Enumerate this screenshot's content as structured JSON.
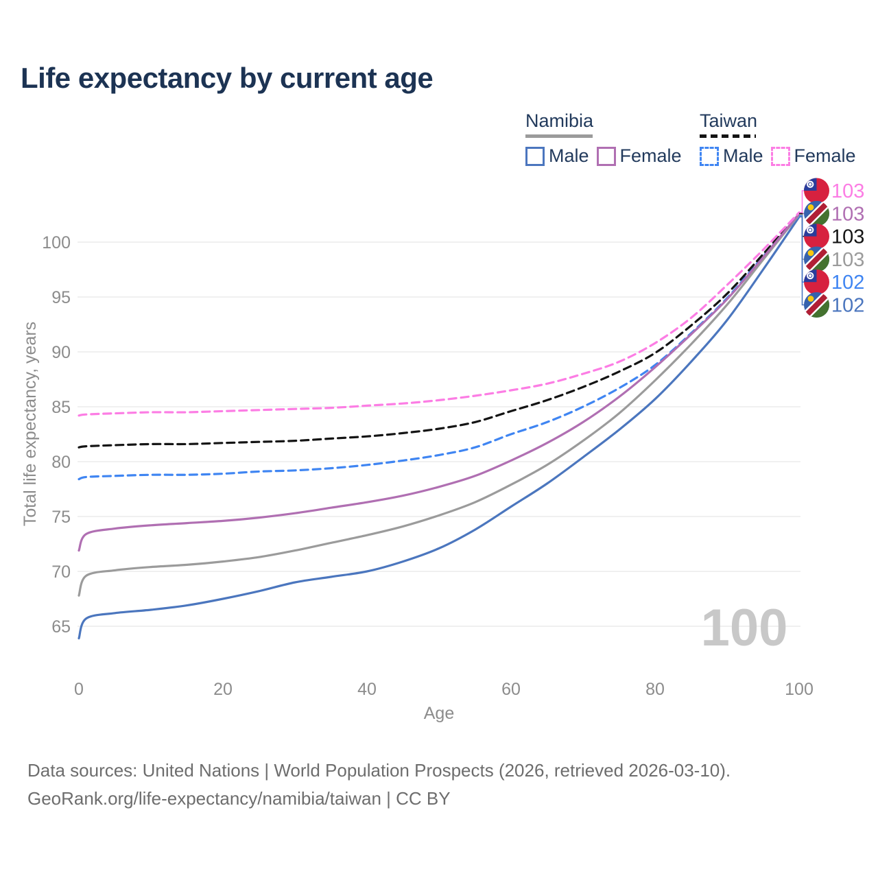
{
  "title": "Life expectancy by current age",
  "legend": {
    "namibia": {
      "label": "Namibia",
      "male": "Male",
      "female": "Female"
    },
    "taiwan": {
      "label": "Taiwan",
      "male": "Male",
      "female": "Female"
    }
  },
  "colors": {
    "title": "#1c3353",
    "legend_text": "#223a5c",
    "axis_text": "#8c8c8c",
    "grid": "#ececec",
    "watermark": "#c8c8c8",
    "footer": "#6d6d6d",
    "namibia_male": "#4b76be",
    "namibia_female": "#b06fb2",
    "namibia_all": "#9b9b9b",
    "taiwan_male": "#3f85f2",
    "taiwan_female": "#fc7de4",
    "taiwan_all": "#141414",
    "flag_taiwan_red": "#d7213f",
    "flag_taiwan_blue": "#2a3c9b",
    "flag_namibia_blue": "#3662ad",
    "flag_namibia_green": "#44722f",
    "flag_namibia_red": "#b01f35",
    "flag_namibia_sun": "#f9c80e"
  },
  "watermark": "100",
  "chart_data": {
    "type": "line",
    "title": "Life expectancy by current age",
    "xlabel": "Age",
    "ylabel": "Total life expectancy, years",
    "xlim": [
      0,
      100
    ],
    "ylim": [
      63,
      104
    ],
    "xticks": [
      0,
      20,
      40,
      60,
      80,
      100
    ],
    "yticks": [
      65,
      70,
      75,
      80,
      85,
      90,
      95,
      100
    ],
    "grid": "horizontal",
    "legend_position": "top-right",
    "x": [
      0,
      1,
      5,
      10,
      15,
      20,
      25,
      30,
      35,
      40,
      45,
      50,
      55,
      60,
      65,
      70,
      75,
      80,
      85,
      90,
      95,
      100
    ],
    "series": [
      {
        "name": "Taiwan Female",
        "color_key": "taiwan_female",
        "dashed": true,
        "values": [
          84.2,
          84.3,
          84.4,
          84.5,
          84.5,
          84.6,
          84.7,
          84.8,
          84.9,
          85.1,
          85.3,
          85.6,
          86.0,
          86.5,
          87.1,
          88.0,
          89.1,
          90.8,
          93.1,
          96.1,
          99.3,
          102.7
        ]
      },
      {
        "name": "Namibia Female",
        "color_key": "namibia_female",
        "dashed": false,
        "values": [
          71.9,
          73.4,
          73.9,
          74.2,
          74.4,
          74.6,
          74.9,
          75.3,
          75.8,
          76.3,
          76.9,
          77.7,
          78.7,
          80.1,
          81.7,
          83.6,
          85.9,
          88.6,
          91.6,
          94.8,
          98.6,
          102.6
        ]
      },
      {
        "name": "Taiwan",
        "color_key": "taiwan_all",
        "dashed": true,
        "values": [
          81.3,
          81.4,
          81.5,
          81.6,
          81.6,
          81.7,
          81.8,
          81.9,
          82.1,
          82.3,
          82.6,
          83.0,
          83.6,
          84.6,
          85.6,
          86.8,
          88.2,
          89.9,
          92.4,
          95.3,
          98.9,
          102.6
        ]
      },
      {
        "name": "Namibia",
        "color_key": "namibia_all",
        "dashed": false,
        "values": [
          67.8,
          69.6,
          70.1,
          70.4,
          70.6,
          70.9,
          71.3,
          71.9,
          72.6,
          73.3,
          74.1,
          75.1,
          76.3,
          77.9,
          79.7,
          81.9,
          84.4,
          87.4,
          90.7,
          94.3,
          98.4,
          102.5
        ]
      },
      {
        "name": "Taiwan Male",
        "color_key": "taiwan_male",
        "dashed": true,
        "values": [
          78.4,
          78.6,
          78.7,
          78.8,
          78.8,
          78.9,
          79.1,
          79.2,
          79.4,
          79.7,
          80.1,
          80.6,
          81.3,
          82.5,
          83.6,
          85.0,
          86.7,
          88.8,
          91.7,
          94.9,
          98.7,
          102.4
        ]
      },
      {
        "name": "Namibia Male",
        "color_key": "namibia_male",
        "dashed": false,
        "values": [
          63.9,
          65.7,
          66.2,
          66.5,
          66.9,
          67.5,
          68.2,
          69.0,
          69.5,
          70.0,
          70.9,
          72.1,
          73.8,
          75.9,
          78.0,
          80.4,
          82.9,
          85.7,
          89.1,
          92.9,
          97.5,
          102.3
        ]
      }
    ]
  },
  "right_labels": [
    {
      "flag": "taiwan",
      "value": "103",
      "color_key": "taiwan_female"
    },
    {
      "flag": "namibia",
      "value": "103",
      "color_key": "namibia_female"
    },
    {
      "flag": "taiwan",
      "value": "103",
      "color_key": "taiwan_all"
    },
    {
      "flag": "namibia",
      "value": "103",
      "color_key": "namibia_all"
    },
    {
      "flag": "taiwan",
      "value": "102",
      "color_key": "taiwan_male"
    },
    {
      "flag": "namibia",
      "value": "102",
      "color_key": "namibia_male"
    }
  ],
  "footer": {
    "line1": "Data sources: United Nations | World Population Prospects (2026, retrieved 2026-03-10).",
    "line2": "GeoRank.org/life-expectancy/namibia/taiwan | CC BY"
  }
}
